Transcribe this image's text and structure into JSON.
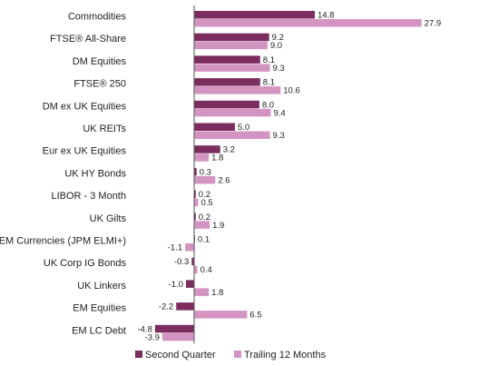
{
  "chart_data": {
    "type": "bar",
    "orientation": "horizontal",
    "categories": [
      "Commodities",
      "FTSE® All-Share",
      "DM Equities",
      "FTSE® 250",
      "DM ex UK Equities",
      "UK REITs",
      "Eur ex UK Equities",
      "UK HY Bonds",
      "LIBOR - 3 Month",
      "UK Gilts",
      "EM Currencies (JPM ELMI+)",
      "UK Corp IG Bonds",
      "UK Linkers",
      "EM Equities",
      "EM LC Debt"
    ],
    "series": [
      {
        "name": "Second Quarter",
        "color": "#7b2d5e",
        "values": [
          14.8,
          9.2,
          8.1,
          8.1,
          8.0,
          5.0,
          3.2,
          0.3,
          0.2,
          0.2,
          0.1,
          -0.3,
          -1.0,
          -2.2,
          -4.8
        ],
        "labels": [
          "14.8",
          "9.2",
          "8.1",
          "8.1",
          "8.0",
          "5.0",
          "3.2",
          "0.3",
          "0.2",
          "0.2",
          "0.1",
          "-0.3",
          "-1.0",
          "-2.2",
          "-4.8"
        ]
      },
      {
        "name": "Trailing 12 Months",
        "color": "#d494c2",
        "values": [
          27.9,
          9.0,
          9.3,
          10.6,
          9.4,
          9.3,
          1.8,
          2.6,
          0.5,
          1.9,
          -1.1,
          0.4,
          1.8,
          6.5,
          -3.9
        ],
        "labels": [
          "27.9",
          "9.0",
          "9.3",
          "10.6",
          "9.4",
          "9.3",
          "1.8",
          "2.6",
          "0.5",
          "1.9",
          "-1.1",
          "0.4",
          "1.8",
          "6.5",
          "-3.9"
        ]
      }
    ],
    "xlim": [
      -6,
      29
    ],
    "grid": false,
    "legend_position": "bottom"
  }
}
